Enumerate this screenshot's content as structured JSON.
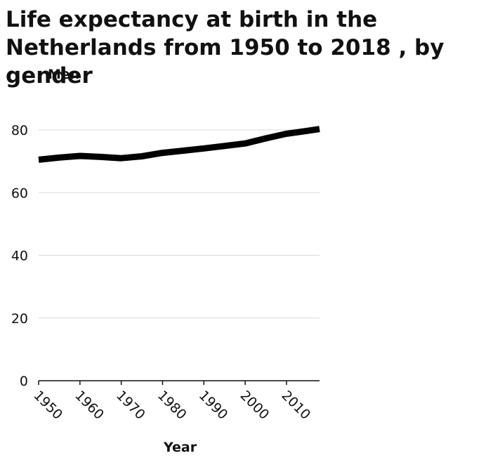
{
  "chart_data": {
    "type": "line",
    "title": "Life expectancy at birth in the Netherlands from 1950 to 2018 , by gender",
    "ylabel": "Men",
    "xlabel": "Year",
    "xlim": [
      1950,
      2018
    ],
    "ylim": [
      0,
      80
    ],
    "grid": true,
    "x_ticks": [
      "1950",
      "1960",
      "1970",
      "1980",
      "1990",
      "2000",
      "2010"
    ],
    "y_ticks": [
      "0",
      "20",
      "40",
      "60",
      "80"
    ],
    "series": [
      {
        "name": "",
        "color": "#000000",
        "x": [
          1950,
          1955,
          1960,
          1965,
          1970,
          1975,
          1980,
          1985,
          1990,
          1995,
          2000,
          2005,
          2010,
          2015,
          2018
        ],
        "y": [
          70.5,
          71.2,
          71.7,
          71.4,
          71.0,
          71.6,
          72.7,
          73.4,
          74.1,
          74.9,
          75.7,
          77.3,
          78.8,
          79.7,
          80.3
        ]
      }
    ]
  }
}
